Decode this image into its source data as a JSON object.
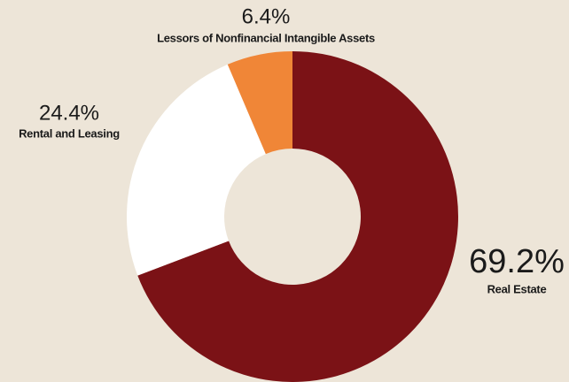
{
  "chart_data": {
    "type": "donut",
    "categories": [
      "Real Estate",
      "Rental and Leasing",
      "Lessors of Nonfinancial Intangible Assets"
    ],
    "values": [
      69.2,
      24.4,
      6.4
    ],
    "value_labels": [
      "69.2%",
      "24.4%",
      "6.4%"
    ],
    "colors": [
      "#7b1216",
      "#ffffff",
      "#f08637"
    ]
  }
}
